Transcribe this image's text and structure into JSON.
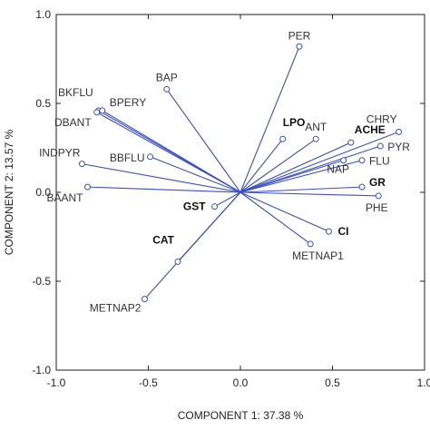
{
  "chart_data": {
    "type": "scatter",
    "subtype": "biplot-loadings",
    "title": "",
    "xlabel": "COMPONENT 1:  37.38 %",
    "ylabel": "COMPONENT 2: 13.57 %",
    "xlim": [
      -1.0,
      1.0
    ],
    "ylim": [
      -1.0,
      1.0
    ],
    "xticks": [
      -1.0,
      -0.5,
      0.0,
      0.5,
      1.0
    ],
    "yticks": [
      -1.0,
      -0.5,
      0.0,
      0.5,
      1.0
    ],
    "xtick_labels": [
      "-1.0",
      "-0.5",
      "0.0",
      "0.5",
      "1.0"
    ],
    "ytick_labels": [
      "-1.0",
      "-0.5",
      "0.0",
      "0.5",
      "1.0"
    ],
    "grid": false,
    "origin_rays": true,
    "line_color": "#3a4fc4",
    "points": [
      {
        "label": "PER",
        "x": 0.32,
        "y": 0.82,
        "bold": false
      },
      {
        "label": "BAP",
        "x": -0.4,
        "y": 0.58,
        "bold": false
      },
      {
        "label": "BKFLU",
        "x": -0.77,
        "y": 0.46,
        "bold": false
      },
      {
        "label": "BPERY",
        "x": -0.75,
        "y": 0.46,
        "bold": false
      },
      {
        "label": "DBANT",
        "x": -0.78,
        "y": 0.45,
        "bold": false
      },
      {
        "label": "LPO",
        "x": 0.23,
        "y": 0.3,
        "bold": true
      },
      {
        "label": "ANT",
        "x": 0.41,
        "y": 0.3,
        "bold": false
      },
      {
        "label": "ACHE",
        "x": 0.6,
        "y": 0.28,
        "bold": true
      },
      {
        "label": "CHRY",
        "x": 0.86,
        "y": 0.34,
        "bold": false
      },
      {
        "label": "PYR",
        "x": 0.76,
        "y": 0.26,
        "bold": false
      },
      {
        "label": "NAP",
        "x": 0.56,
        "y": 0.18,
        "bold": false
      },
      {
        "label": "FLU",
        "x": 0.66,
        "y": 0.18,
        "bold": false
      },
      {
        "label": "INDPYR",
        "x": -0.86,
        "y": 0.16,
        "bold": false
      },
      {
        "label": "BBFLU",
        "x": -0.49,
        "y": 0.2,
        "bold": false
      },
      {
        "label": "GR",
        "x": 0.66,
        "y": 0.03,
        "bold": true
      },
      {
        "label": "PHE",
        "x": 0.75,
        "y": -0.02,
        "bold": false
      },
      {
        "label": "BAANT",
        "x": -0.83,
        "y": 0.03,
        "bold": false
      },
      {
        "label": "GST",
        "x": -0.14,
        "y": -0.08,
        "bold": true
      },
      {
        "label": "CI",
        "x": 0.48,
        "y": -0.22,
        "bold": true
      },
      {
        "label": "METNAP1",
        "x": 0.38,
        "y": -0.29,
        "bold": false
      },
      {
        "label": "CAT",
        "x": -0.34,
        "y": -0.39,
        "bold": true
      },
      {
        "label": "METNAP2",
        "x": -0.52,
        "y": -0.6,
        "bold": false
      }
    ]
  }
}
